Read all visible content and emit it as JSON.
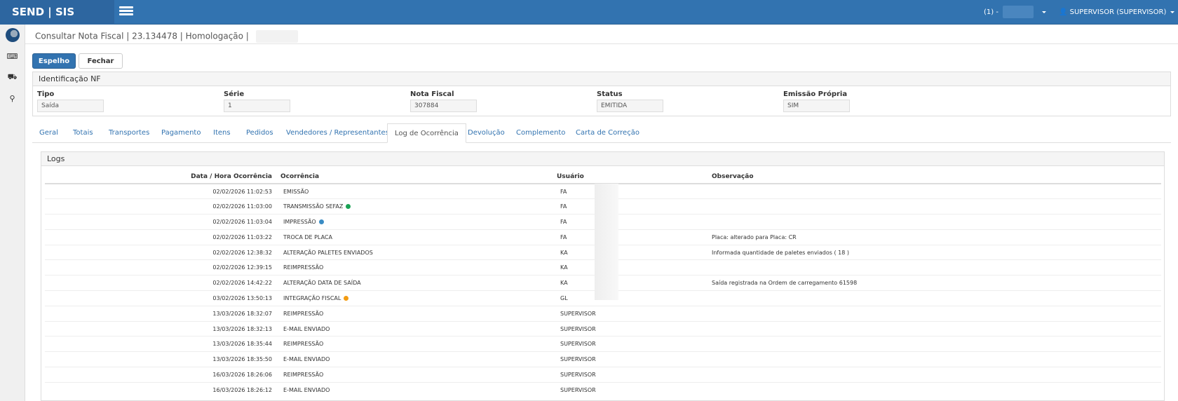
{
  "app": {
    "brand": "SEND | SIS",
    "company": "(1) -",
    "user": "SUPERVISOR (SUPERVISOR)"
  },
  "breadcrumb": "Consultar Nota Fiscal | 23.134478 | Homologação |",
  "buttons": {
    "espelho": "Espelho",
    "fechar": "Fechar"
  },
  "identificacao": {
    "title": "Identificação NF",
    "fields": [
      {
        "label": "Tipo",
        "value": "Saída"
      },
      {
        "label": "Série",
        "value": "1"
      },
      {
        "label": "Nota Fiscal",
        "value": "307884"
      },
      {
        "label": "Status",
        "value": "EMITIDA"
      },
      {
        "label": "Emissão Própria",
        "value": "SIM"
      }
    ]
  },
  "tabs": [
    "Geral",
    "Totais",
    "Transportes",
    "Pagamento",
    "Itens",
    "Pedidos",
    "Vendedores / Representantes",
    "Log de Ocorrência",
    "Devolução",
    "Complemento",
    "Carta de Correção"
  ],
  "active_tab": "Log de Ocorrência",
  "logs": {
    "title": "Logs",
    "columns": [
      "Data / Hora Ocorrência",
      "Ocorrência",
      "Usuário",
      "Observação"
    ],
    "rows": [
      {
        "data": "02/02/2026 11:02:53",
        "ocorrencia": "EMISSÃO",
        "usuario": "FA",
        "obs": "",
        "dot": ""
      },
      {
        "data": "02/02/2026 11:03:00",
        "ocorrencia": "TRANSMISSÃO SEFAZ",
        "usuario": "FA",
        "obs": "",
        "dot": "#1aa255"
      },
      {
        "data": "02/02/2026 11:03:04",
        "ocorrencia": "IMPRESSÃO",
        "usuario": "FA",
        "obs": "",
        "dot": "#3a8cc4"
      },
      {
        "data": "02/02/2026 11:03:22",
        "ocorrencia": "TROCA DE PLACA",
        "usuario": "FA",
        "obs": "Placa: alterado para Placa: CR",
        "dot": ""
      },
      {
        "data": "02/02/2026 12:38:32",
        "ocorrencia": "ALTERAÇÃO PALETES ENVIADOS",
        "usuario": "KA",
        "obs": "Informada quantidade de paletes enviados ( 18 )",
        "dot": ""
      },
      {
        "data": "02/02/2026 12:39:15",
        "ocorrencia": "REIMPRESSÃO",
        "usuario": "KA",
        "obs": "",
        "dot": ""
      },
      {
        "data": "02/02/2026 14:42:22",
        "ocorrencia": "ALTERAÇÃO DATA DE SAÍDA",
        "usuario": "KA",
        "obs": "Saída registrada na Ordem de carregamento 61598",
        "dot": ""
      },
      {
        "data": "03/02/2026 13:50:13",
        "ocorrencia": "INTEGRAÇÃO FISCAL",
        "usuario": "GL",
        "obs": "",
        "dot": "#f39c12"
      },
      {
        "data": "13/03/2026 18:32:07",
        "ocorrencia": "REIMPRESSÃO",
        "usuario": "SUPERVISOR",
        "obs": "",
        "dot": ""
      },
      {
        "data": "13/03/2026 18:32:13",
        "ocorrencia": "E-MAIL ENVIADO",
        "usuario": "SUPERVISOR",
        "obs": "",
        "dot": ""
      },
      {
        "data": "13/03/2026 18:35:44",
        "ocorrencia": "REIMPRESSÃO",
        "usuario": "SUPERVISOR",
        "obs": "",
        "dot": ""
      },
      {
        "data": "13/03/2026 18:35:50",
        "ocorrencia": "E-MAIL ENVIADO",
        "usuario": "SUPERVISOR",
        "obs": "",
        "dot": ""
      },
      {
        "data": "16/03/2026 18:26:06",
        "ocorrencia": "REIMPRESSÃO",
        "usuario": "SUPERVISOR",
        "obs": "",
        "dot": ""
      },
      {
        "data": "16/03/2026 18:26:12",
        "ocorrencia": "E-MAIL ENVIADO",
        "usuario": "SUPERVISOR",
        "obs": "",
        "dot": ""
      }
    ]
  }
}
